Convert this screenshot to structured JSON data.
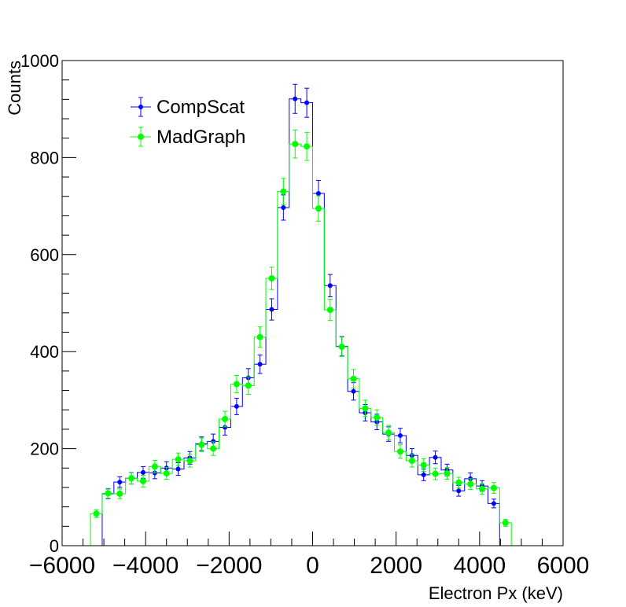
{
  "chart_data": {
    "type": "histogram",
    "title": "",
    "xlabel": "Electron Px (keV)",
    "ylabel": "Counts",
    "xlim": [
      -6000,
      6000
    ],
    "ylim": [
      0,
      1000
    ],
    "x_major_ticks": [
      -6000,
      -4000,
      -2000,
      0,
      2000,
      4000,
      6000
    ],
    "x_tick_labels": [
      "−6000",
      "−4000",
      "−2000",
      "0",
      "2000",
      "4000",
      "6000"
    ],
    "y_major_ticks": [
      0,
      200,
      400,
      600,
      800,
      1000
    ],
    "y_tick_labels": [
      "0",
      "200",
      "400",
      "600",
      "800",
      "1000"
    ],
    "bin_width": 280,
    "grid": false,
    "legend_position": "top-left",
    "series": [
      {
        "name": "CompScat",
        "color": "#0000ff",
        "x_centers": [
          -5180,
          -4900,
          -4620,
          -4340,
          -4060,
          -3780,
          -3500,
          -3220,
          -2940,
          -2660,
          -2380,
          -2100,
          -1820,
          -1540,
          -1260,
          -980,
          -700,
          -420,
          -140,
          140,
          420,
          700,
          980,
          1260,
          1540,
          1820,
          2100,
          2380,
          2660,
          2940,
          3220,
          3500,
          3780,
          4060,
          4340,
          4620,
          4900,
          5180
        ],
        "values": [
          0,
          107,
          131,
          139,
          151,
          150,
          160,
          158,
          181,
          210,
          215,
          244,
          287,
          346,
          374,
          487,
          697,
          921,
          913,
          726,
          536,
          411,
          318,
          274,
          255,
          230,
          227,
          186,
          146,
          182,
          156,
          113,
          138,
          123,
          87,
          0,
          0,
          0
        ],
        "errors": [
          0,
          10,
          11,
          12,
          12,
          12,
          13,
          13,
          13,
          14,
          15,
          16,
          17,
          19,
          19,
          22,
          26,
          30,
          30,
          27,
          23,
          20,
          18,
          17,
          16,
          15,
          15,
          14,
          12,
          13,
          12,
          11,
          12,
          11,
          9,
          0,
          0,
          0
        ]
      },
      {
        "name": "MadGraph",
        "color": "#00ff00",
        "x_centers": [
          -5180,
          -4900,
          -4620,
          -4340,
          -4060,
          -3780,
          -3500,
          -3220,
          -2940,
          -2660,
          -2380,
          -2100,
          -1820,
          -1540,
          -1260,
          -980,
          -700,
          -420,
          -140,
          140,
          420,
          700,
          980,
          1260,
          1540,
          1820,
          2100,
          2380,
          2660,
          2940,
          3220,
          3500,
          3780,
          4060,
          4340,
          4620,
          4900,
          5180
        ],
        "values": [
          66,
          108,
          107,
          139,
          133,
          163,
          149,
          178,
          175,
          208,
          200,
          261,
          333,
          330,
          430,
          551,
          730,
          828,
          823,
          695,
          486,
          410,
          344,
          283,
          264,
          233,
          194,
          175,
          166,
          148,
          149,
          130,
          127,
          117,
          119,
          47,
          0,
          0
        ],
        "errors": [
          8,
          10,
          10,
          12,
          12,
          13,
          12,
          13,
          13,
          14,
          14,
          16,
          18,
          18,
          21,
          23,
          27,
          29,
          29,
          26,
          22,
          20,
          19,
          17,
          16,
          15,
          14,
          13,
          13,
          12,
          12,
          11,
          11,
          11,
          11,
          7,
          0,
          0
        ]
      }
    ]
  }
}
